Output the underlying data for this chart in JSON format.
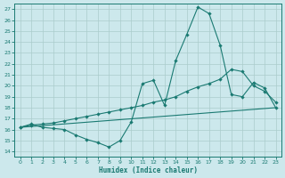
{
  "xlabel": "Humidex (Indice chaleur)",
  "bg_color": "#cce8ec",
  "grid_color": "#aacccc",
  "line_color": "#1a7a72",
  "xlim": [
    -0.5,
    23.5
  ],
  "ylim": [
    13.5,
    27.5
  ],
  "yticks": [
    14,
    15,
    16,
    17,
    18,
    19,
    20,
    21,
    22,
    23,
    24,
    25,
    26,
    27
  ],
  "xticks": [
    0,
    1,
    2,
    3,
    4,
    5,
    6,
    7,
    8,
    9,
    10,
    11,
    12,
    13,
    14,
    15,
    16,
    17,
    18,
    19,
    20,
    21,
    22,
    23
  ],
  "line1_x": [
    0,
    1,
    2,
    3,
    4,
    5,
    6,
    7,
    8,
    9,
    10,
    11,
    12,
    13,
    14,
    15,
    16,
    17,
    18,
    19,
    20,
    21,
    22,
    23
  ],
  "line1_y": [
    16.2,
    16.5,
    16.2,
    16.1,
    16.0,
    15.5,
    15.1,
    14.8,
    14.4,
    15.0,
    16.7,
    20.2,
    20.5,
    18.2,
    22.3,
    24.7,
    27.2,
    26.6,
    23.7,
    19.2,
    19.0,
    20.3,
    19.8,
    18.0
  ],
  "line2_x": [
    0,
    1,
    2,
    3,
    4,
    5,
    6,
    7,
    8,
    9,
    10,
    11,
    12,
    13,
    14,
    15,
    16,
    17,
    18,
    19,
    20,
    21,
    22,
    23
  ],
  "line2_y": [
    16.2,
    16.4,
    16.5,
    16.6,
    16.8,
    17.0,
    17.2,
    17.4,
    17.6,
    17.8,
    18.0,
    18.2,
    18.5,
    18.7,
    19.0,
    19.5,
    19.9,
    20.2,
    20.6,
    21.5,
    21.3,
    20.0,
    19.5,
    18.5
  ],
  "line3_x": [
    0,
    23
  ],
  "line3_y": [
    16.2,
    18.0
  ]
}
